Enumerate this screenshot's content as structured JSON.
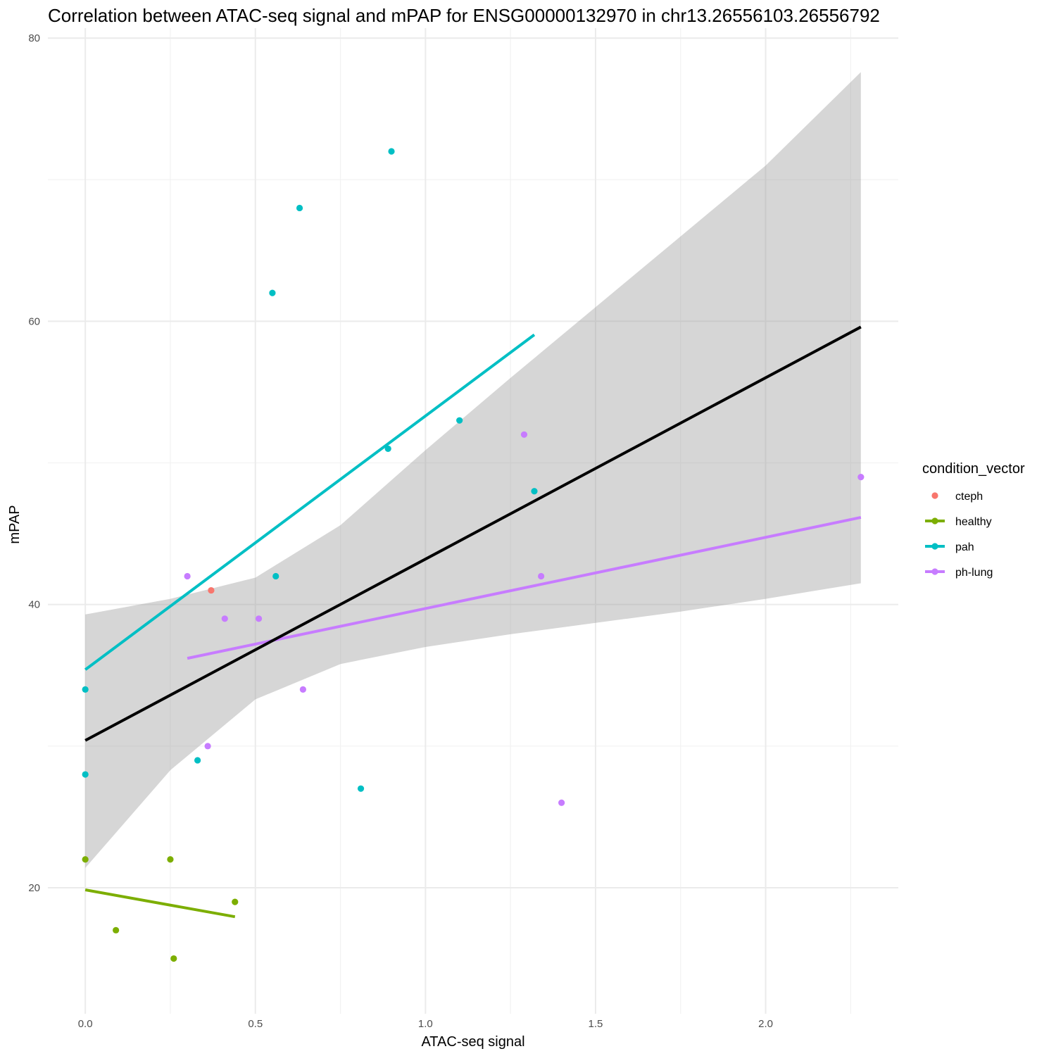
{
  "chart_data": {
    "type": "scatter",
    "title": "Correlation between ATAC-seq signal and mPAP for ENSG00000132970 in chr13.26556103.26556792",
    "xlabel": "ATAC-seq signal",
    "ylabel": "mPAP",
    "xlim": [
      -0.11,
      2.39
    ],
    "ylim": [
      11.1,
      80.7
    ],
    "x_ticks": [
      0.0,
      0.5,
      1.0,
      1.5,
      2.0
    ],
    "x_tick_labels": [
      "0.0",
      "0.5",
      "1.0",
      "1.5",
      "2.0"
    ],
    "y_ticks": [
      20,
      40,
      60,
      80
    ],
    "y_tick_labels": [
      "20",
      "40",
      "60",
      "80"
    ],
    "grid": true,
    "legend": {
      "title": "condition_vector",
      "position": "right",
      "entries": [
        {
          "label": "cteph",
          "color": "#F8766D",
          "has_line": false
        },
        {
          "label": "healthy",
          "color": "#7CAE00",
          "has_line": true
        },
        {
          "label": "pah",
          "color": "#00BFC4",
          "has_line": true
        },
        {
          "label": "ph-lung",
          "color": "#C77CFF",
          "has_line": true
        }
      ]
    },
    "series": [
      {
        "name": "cteph",
        "color": "#F8766D",
        "points": [
          [
            0.37,
            41.0
          ]
        ]
      },
      {
        "name": "healthy",
        "color": "#7CAE00",
        "points": [
          [
            0.0,
            22.0
          ],
          [
            0.25,
            22.0
          ],
          [
            0.44,
            19.0
          ],
          [
            0.09,
            17.0
          ],
          [
            0.26,
            15.0
          ]
        ]
      },
      {
        "name": "pah",
        "color": "#00BFC4",
        "points": [
          [
            0.9,
            72.0
          ],
          [
            0.63,
            68.0
          ],
          [
            0.55,
            62.0
          ],
          [
            1.1,
            53.0
          ],
          [
            0.89,
            51.0
          ],
          [
            1.32,
            48.0
          ],
          [
            0.56,
            42.0
          ],
          [
            0.0,
            34.0
          ],
          [
            0.33,
            29.0
          ],
          [
            0.0,
            28.0
          ],
          [
            0.81,
            27.0
          ]
        ]
      },
      {
        "name": "ph-lung",
        "color": "#C77CFF",
        "points": [
          [
            1.29,
            52.0
          ],
          [
            2.28,
            49.0
          ],
          [
            0.3,
            42.0
          ],
          [
            1.34,
            42.0
          ],
          [
            0.41,
            39.0
          ],
          [
            0.51,
            39.0
          ],
          [
            0.64,
            34.0
          ],
          [
            0.36,
            30.0
          ],
          [
            1.4,
            26.0
          ]
        ]
      }
    ],
    "group_fits": [
      {
        "name": "healthy",
        "color": "#7CAE00",
        "x": [
          0.0,
          0.44
        ],
        "y": [
          19.85,
          17.95
        ]
      },
      {
        "name": "pah",
        "color": "#00BFC4",
        "x": [
          0.0,
          1.32
        ],
        "y": [
          35.4,
          59.05
        ]
      },
      {
        "name": "ph-lung",
        "color": "#C77CFF",
        "x": [
          0.3,
          2.28
        ],
        "y": [
          36.2,
          46.15
        ]
      }
    ],
    "overall_fit": {
      "color": "#000000",
      "x": [
        0.0,
        2.28
      ],
      "y": [
        30.4,
        59.6
      ],
      "ci_band": {
        "x": [
          0.0,
          0.25,
          0.5,
          0.75,
          1.0,
          1.25,
          1.5,
          1.75,
          2.0,
          2.28
        ],
        "lower": [
          21.4,
          28.3,
          33.3,
          35.8,
          37.0,
          37.9,
          38.7,
          39.5,
          40.4,
          41.5
        ],
        "upper": [
          39.3,
          40.4,
          41.9,
          45.6,
          50.9,
          56.0,
          61.0,
          66.0,
          71.0,
          77.6
        ]
      }
    }
  }
}
